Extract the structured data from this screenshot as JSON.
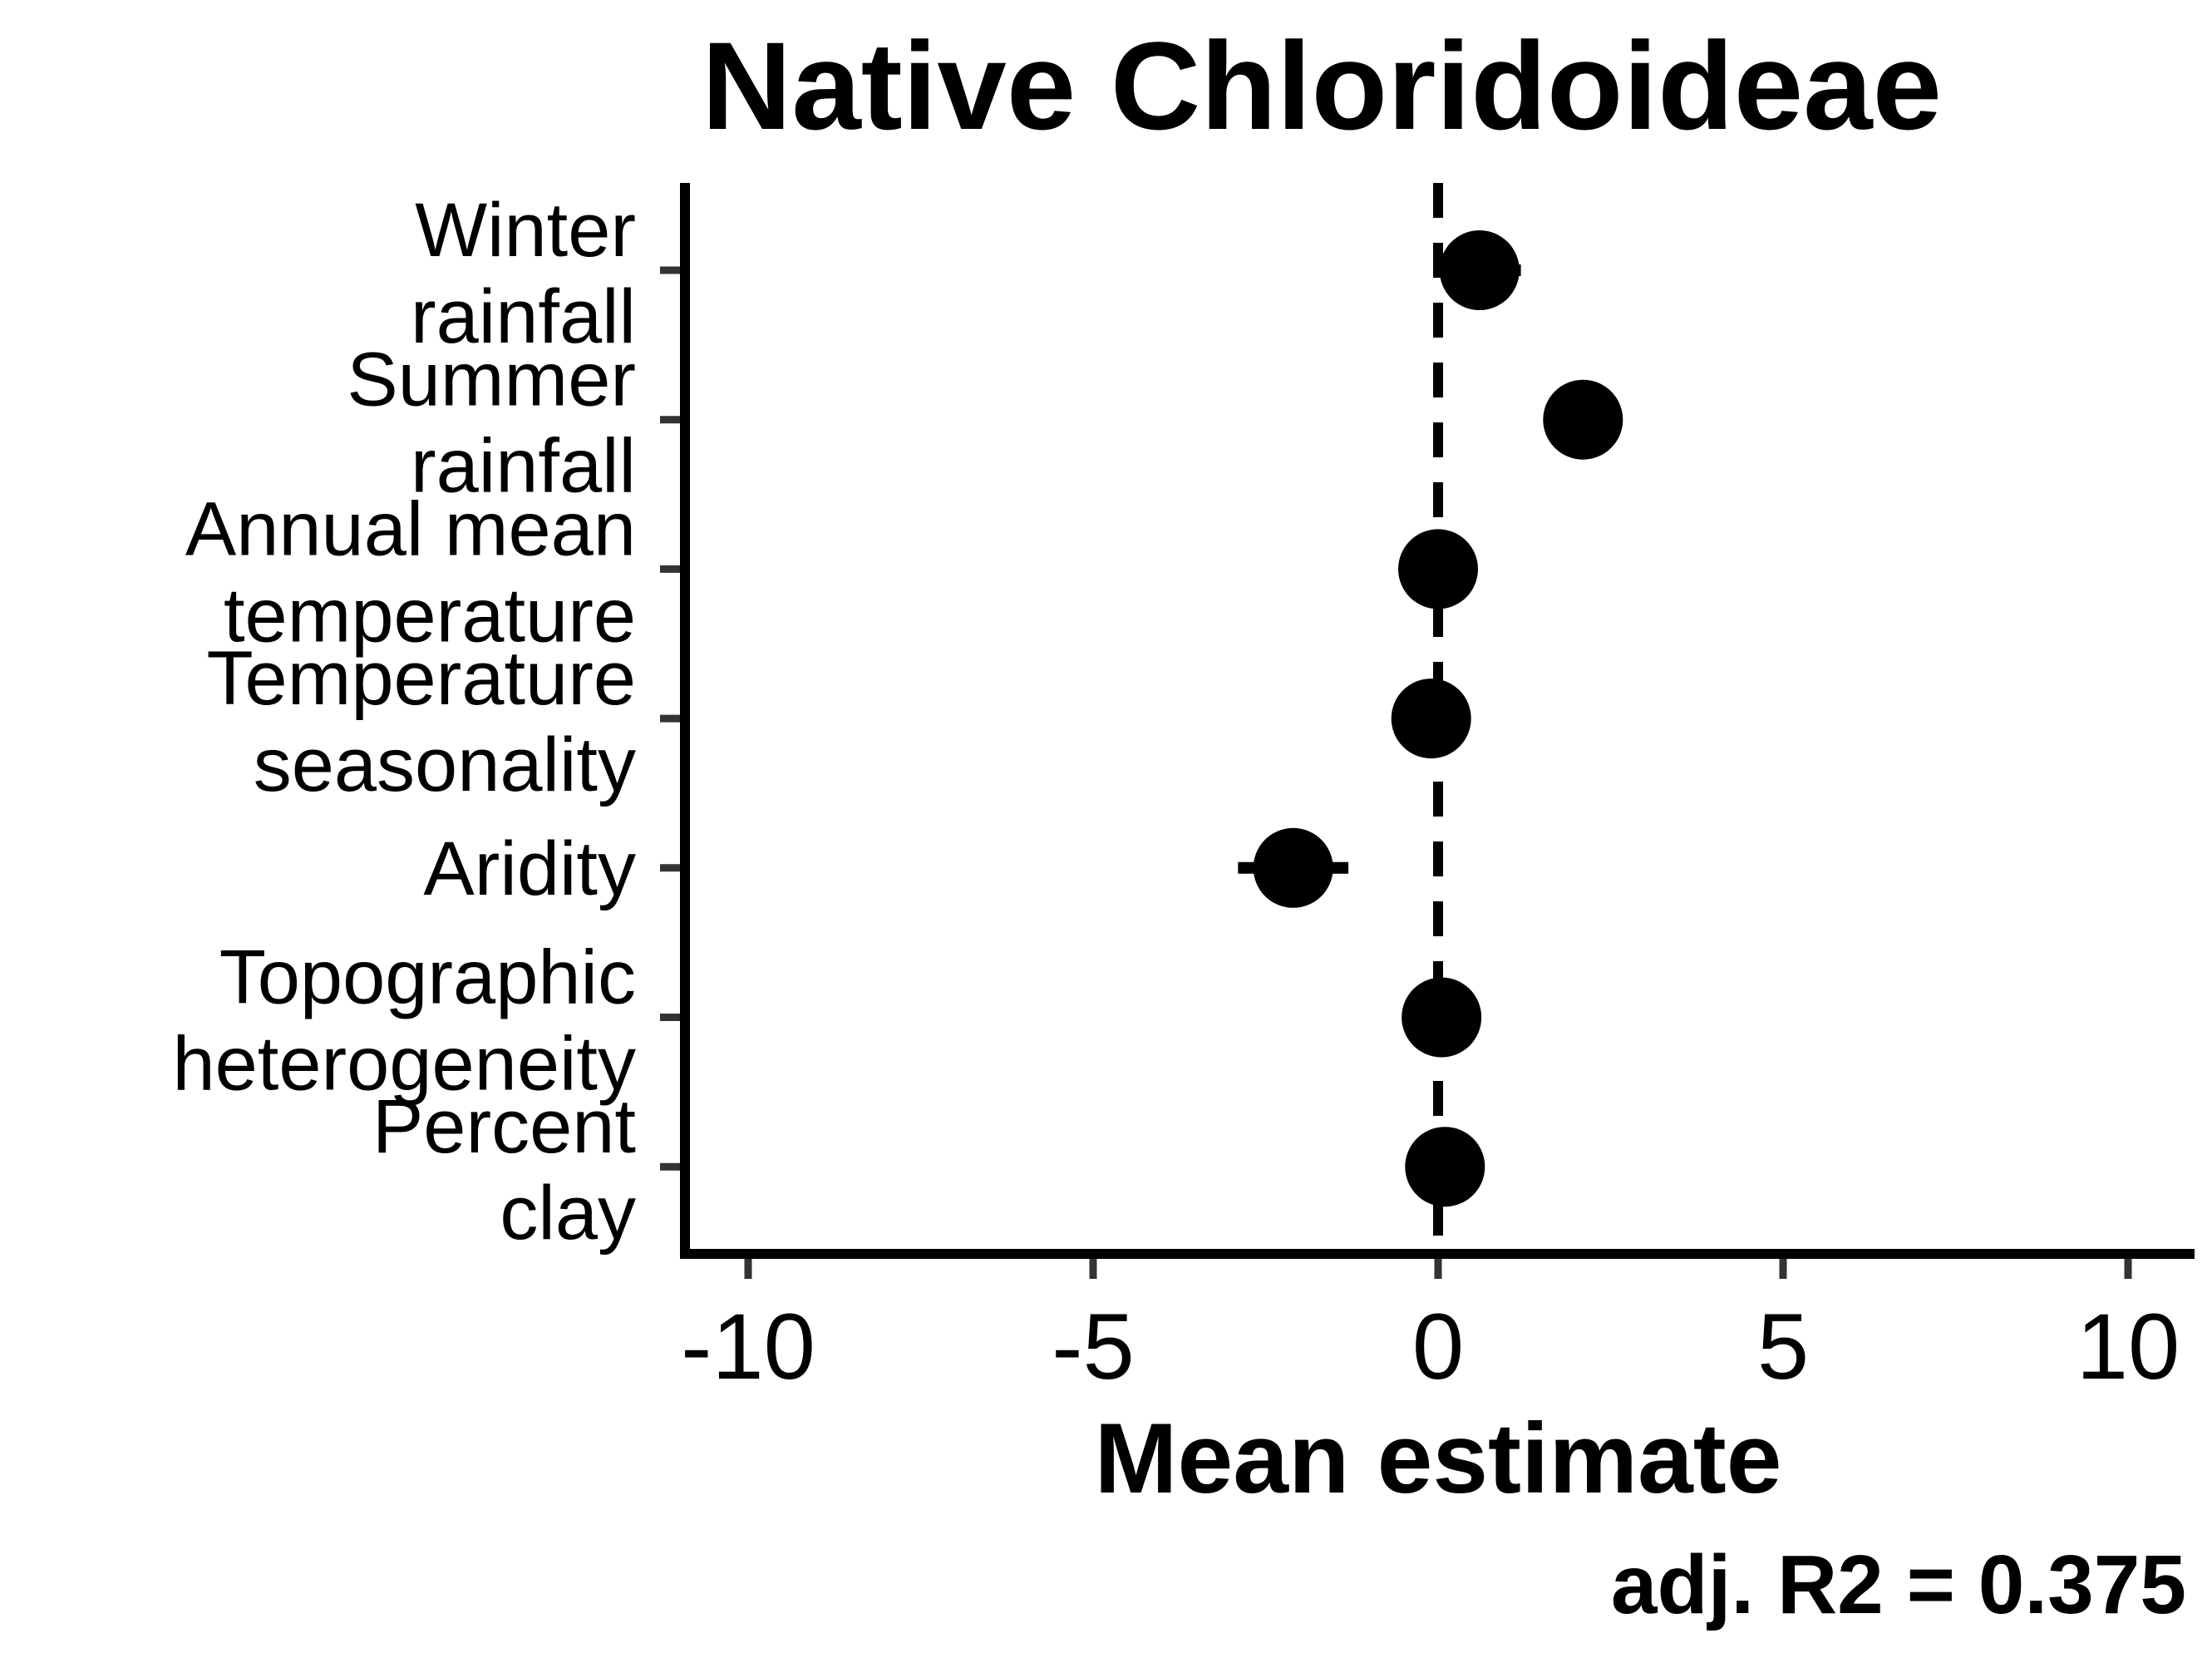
{
  "chart_data": {
    "type": "scatter",
    "title": "Native Chloridoideae",
    "xlabel": "Mean estimate",
    "ylabel": "",
    "xlim": [
      -11,
      11
    ],
    "xticks": [
      "-10",
      "-5",
      "0",
      "5",
      "10"
    ],
    "xtick_values": [
      -10,
      -5,
      0,
      5,
      10
    ],
    "reference_line": 0,
    "grid": false,
    "categories": [
      [
        "Winter",
        "rainfall"
      ],
      [
        "Summer",
        "rainfall"
      ],
      [
        "Annual mean",
        "temperature"
      ],
      [
        "Temperature",
        "seasonality"
      ],
      [
        "Aridity"
      ],
      [
        "Topographic",
        "heterogeneity"
      ],
      [
        "Percent",
        "clay"
      ]
    ],
    "series": [
      {
        "values": [
          0.6,
          2.1,
          0.0,
          -0.1,
          -2.1,
          0.05,
          0.1
        ],
        "ci_low": [
          0.0,
          1.85,
          -0.15,
          -0.3,
          -2.9,
          -0.1,
          -0.1
        ],
        "ci_high": [
          1.2,
          2.35,
          0.15,
          0.1,
          -1.3,
          0.2,
          0.3
        ]
      }
    ],
    "annotation": "adj. R2 = 0.375"
  }
}
